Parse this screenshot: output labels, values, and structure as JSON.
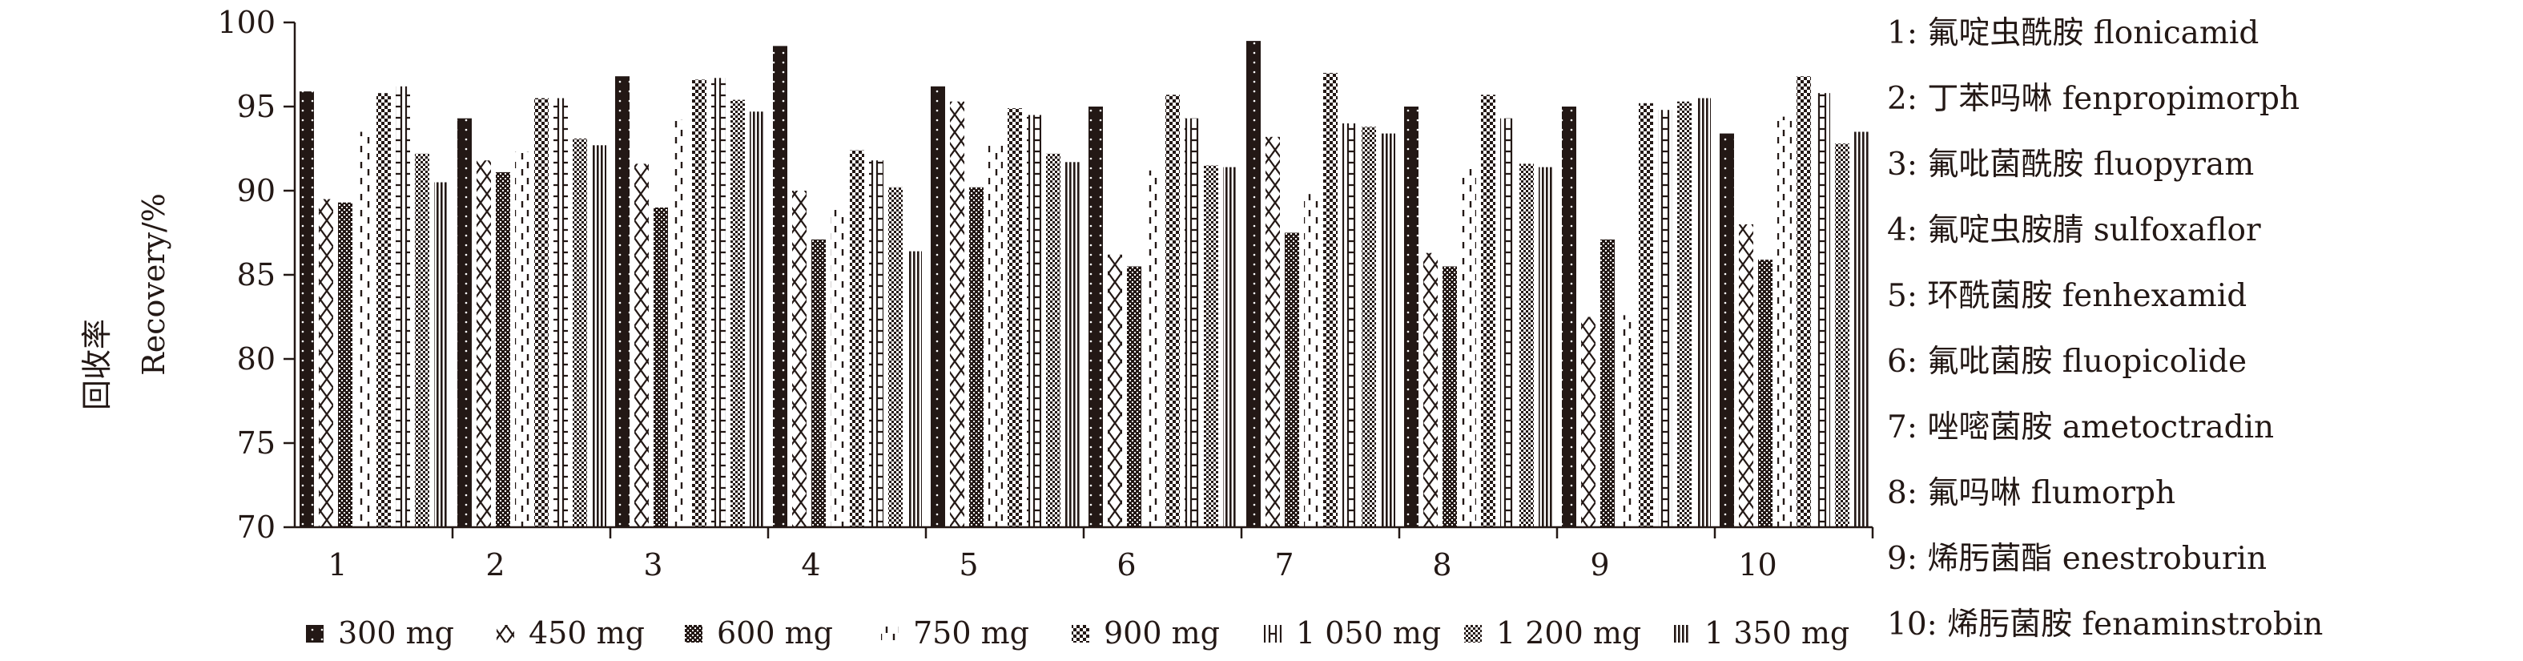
{
  "chart_data": {
    "type": "bar",
    "title": "",
    "xlabel": "",
    "ylabel_cn": "回收率",
    "ylabel": "Recovery/%",
    "ylim": [
      70,
      100
    ],
    "yticks": [
      "70",
      "75",
      "80",
      "85",
      "90",
      "95",
      "100"
    ],
    "categories": [
      "1",
      "2",
      "3",
      "4",
      "5",
      "6",
      "7",
      "8",
      "9",
      "10"
    ],
    "legend_position": "bottom",
    "series": [
      {
        "name": "300 mg",
        "pattern": "solid-dotted",
        "values": [
          95.9,
          94.3,
          96.8,
          98.6,
          96.2,
          95.0,
          98.9,
          95.0,
          95.0,
          93.4
        ]
      },
      {
        "name": "450 mg",
        "pattern": "cross",
        "values": [
          89.5,
          91.8,
          91.6,
          90.0,
          95.3,
          86.2,
          93.2,
          86.3,
          82.5,
          88.0
        ]
      },
      {
        "name": "600 mg",
        "pattern": "dense-check",
        "values": [
          89.3,
          91.1,
          89.0,
          87.1,
          90.2,
          85.5,
          87.5,
          85.5,
          87.1,
          85.9
        ]
      },
      {
        "name": "750 mg",
        "pattern": "dashed",
        "values": [
          93.5,
          92.3,
          94.2,
          89.0,
          92.8,
          91.2,
          89.8,
          91.3,
          82.6,
          94.4
        ]
      },
      {
        "name": "900 mg",
        "pattern": "check",
        "values": [
          95.8,
          95.5,
          96.6,
          92.4,
          94.9,
          95.7,
          97.0,
          95.7,
          95.2,
          96.8
        ]
      },
      {
        "name": "1 050 mg",
        "pattern": "h-ladder",
        "values": [
          96.2,
          95.5,
          96.7,
          91.8,
          94.5,
          94.3,
          94.0,
          94.3,
          94.8,
          95.8
        ]
      },
      {
        "name": "1 200 mg",
        "pattern": "fine-check",
        "values": [
          92.2,
          93.1,
          95.4,
          90.2,
          92.2,
          91.5,
          93.8,
          91.6,
          95.3,
          92.8
        ]
      },
      {
        "name": "1 350 mg",
        "pattern": "vlines",
        "values": [
          90.5,
          92.7,
          94.7,
          86.4,
          91.7,
          91.4,
          93.4,
          91.4,
          95.5,
          93.5
        ]
      }
    ],
    "compound_key": [
      "1: 氟啶虫酰胺 flonicamid",
      "2: 丁苯吗啉 fenpropimorph",
      "3: 氟吡菌酰胺 fluopyram",
      "4: 氟啶虫胺腈 sulfoxaflor",
      "5: 环酰菌胺 fenhexamid",
      "6: 氟吡菌胺 fluopicolide",
      "7: 唑嘧菌胺 ametoctradin",
      "8: 氟吗啉 flumorph",
      "9: 烯肟菌酯 enestroburin",
      "10: 烯肟菌胺 fenaminstrobin"
    ]
  },
  "colors": {
    "ink": "#231815",
    "background": "#ffffff"
  }
}
